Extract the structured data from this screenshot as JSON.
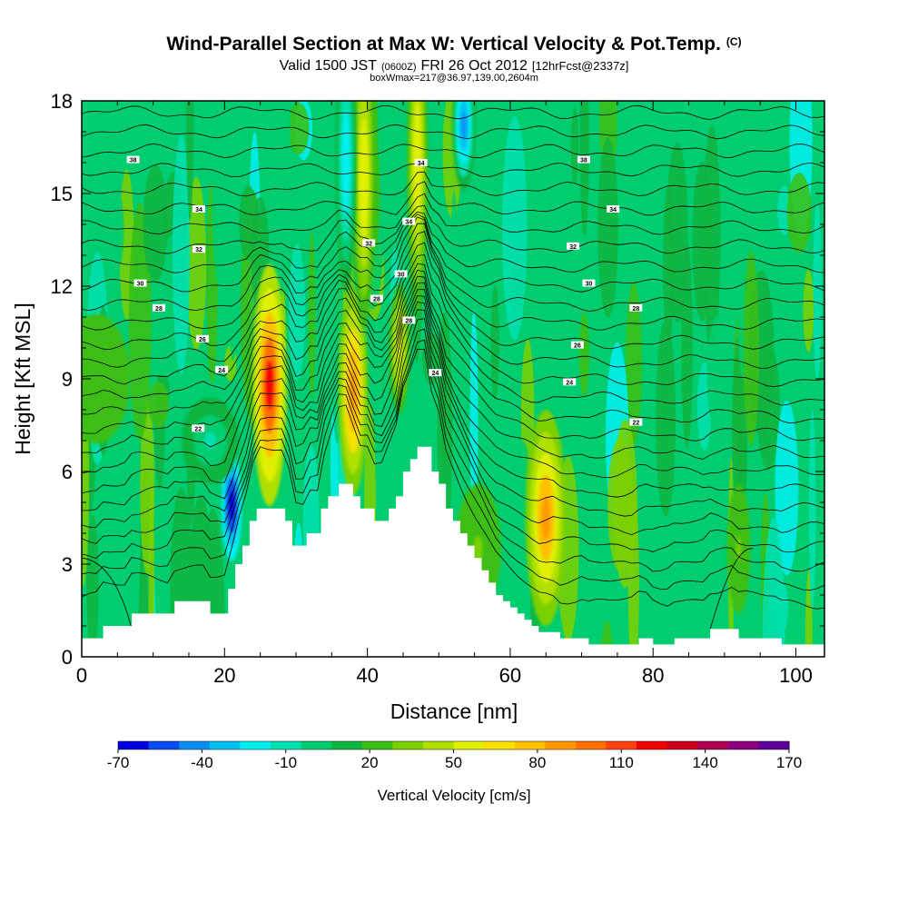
{
  "header": {
    "title": "Wind-Parallel Section at Max W: Vertical Velocity & Pot.Temp.",
    "title_mark": "(C)",
    "sub_valid": "Valid 1500 JST",
    "sub_zulu": "(0600Z)",
    "sub_date": "FRI 26 Oct 2012",
    "sub_fcst": "[12hrFcst@2337z]",
    "sub_box": "boxWmax=217@36.97,139.00,2604m"
  },
  "chart_data": {
    "type": "heatmap",
    "xlabel": "Distance [nm]",
    "ylabel": "Height [Kft MSL]",
    "xlim": [
      0,
      104
    ],
    "ylim": [
      0,
      18
    ],
    "x_ticks": [
      "0",
      "20",
      "40",
      "60",
      "80",
      "100"
    ],
    "y_ticks": [
      "0",
      "3",
      "6",
      "9",
      "12",
      "15",
      "18"
    ],
    "colorbar": {
      "label": "Vertical Velocity [cm/s]",
      "tick_labels": [
        "-70",
        "-40",
        "-10",
        "20",
        "50",
        "80",
        "110",
        "140",
        "170"
      ],
      "range": [
        -70,
        170
      ],
      "colors": [
        "#0000e0",
        "#0a4cf0",
        "#0a8cf0",
        "#00c0f0",
        "#00f0f0",
        "#00e0b0",
        "#00cc70",
        "#10b440",
        "#3cbe14",
        "#7cd000",
        "#b0e000",
        "#e0f000",
        "#f8e000",
        "#ffc000",
        "#ff9800",
        "#ff7000",
        "#ff4010",
        "#f00000",
        "#d00020",
        "#b00050",
        "#8c0080",
        "#60009c"
      ]
    },
    "terrain_kft": [
      [
        0,
        0.6
      ],
      [
        3,
        0.6
      ],
      [
        3,
        1
      ],
      [
        7,
        1
      ],
      [
        7,
        1.4
      ],
      [
        13,
        1.4
      ],
      [
        13,
        1.8
      ],
      [
        18,
        1.8
      ],
      [
        18,
        1.4
      ],
      [
        20.5,
        1.4
      ],
      [
        20.5,
        2.2
      ],
      [
        21.5,
        2.2
      ],
      [
        21.5,
        3
      ],
      [
        22.5,
        3
      ],
      [
        22.5,
        3.6
      ],
      [
        23.5,
        3.6
      ],
      [
        23.5,
        4.4
      ],
      [
        24.5,
        4.4
      ],
      [
        24.5,
        4.8
      ],
      [
        28.5,
        4.8
      ],
      [
        28.5,
        4.4
      ],
      [
        29.5,
        4.4
      ],
      [
        29.5,
        3.6
      ],
      [
        31.5,
        3.6
      ],
      [
        31.5,
        4
      ],
      [
        33.5,
        4
      ],
      [
        33.5,
        4.8
      ],
      [
        34.5,
        4.8
      ],
      [
        34.5,
        5.2
      ],
      [
        36,
        5.2
      ],
      [
        36,
        5.6
      ],
      [
        38,
        5.6
      ],
      [
        38,
        5.2
      ],
      [
        39,
        5.2
      ],
      [
        39,
        4.8
      ],
      [
        41,
        4.8
      ],
      [
        41,
        4.4
      ],
      [
        43,
        4.4
      ],
      [
        43,
        4.8
      ],
      [
        44,
        4.8
      ],
      [
        44,
        5.2
      ],
      [
        45,
        5.2
      ],
      [
        45,
        6
      ],
      [
        46,
        6
      ],
      [
        46,
        6.4
      ],
      [
        47,
        6.4
      ],
      [
        47,
        6.8
      ],
      [
        49,
        6.8
      ],
      [
        49,
        6
      ],
      [
        50,
        6
      ],
      [
        50,
        5.6
      ],
      [
        51,
        5.6
      ],
      [
        51,
        4.8
      ],
      [
        52,
        4.8
      ],
      [
        52,
        4.4
      ],
      [
        53,
        4.4
      ],
      [
        53,
        4
      ],
      [
        54,
        4
      ],
      [
        54,
        3.6
      ],
      [
        55,
        3.6
      ],
      [
        55,
        3.2
      ],
      [
        56,
        3.2
      ],
      [
        56,
        2.8
      ],
      [
        57,
        2.8
      ],
      [
        57,
        2.4
      ],
      [
        58,
        2.4
      ],
      [
        58,
        2
      ],
      [
        59,
        2
      ],
      [
        59,
        1.8
      ],
      [
        60,
        1.8
      ],
      [
        60,
        1.6
      ],
      [
        61,
        1.6
      ],
      [
        61,
        1.4
      ],
      [
        62,
        1.4
      ],
      [
        62,
        1.2
      ],
      [
        63,
        1.2
      ],
      [
        63,
        1
      ],
      [
        64,
        1
      ],
      [
        64,
        0.8
      ],
      [
        67,
        0.8
      ],
      [
        67,
        0.6
      ],
      [
        71,
        0.6
      ],
      [
        71,
        0.4
      ],
      [
        78,
        0.4
      ],
      [
        78,
        0.6
      ],
      [
        80,
        0.6
      ],
      [
        80,
        0.4
      ],
      [
        83,
        0.4
      ],
      [
        83,
        0.6
      ],
      [
        88,
        0.6
      ],
      [
        88,
        0.9
      ],
      [
        92,
        0.9
      ],
      [
        92,
        0.6
      ],
      [
        98,
        0.6
      ],
      [
        98,
        0.4
      ],
      [
        104,
        0.4
      ]
    ],
    "bands": [
      {
        "x": 21.0,
        "y": 4.9,
        "w": 1.1,
        "h": 1.6,
        "v": -70
      },
      {
        "x": 26.5,
        "y": 8.5,
        "w": 1.0,
        "h": 2.4,
        "v": 165
      },
      {
        "x": 26.3,
        "y": 8.8,
        "w": 1.5,
        "h": 2.8,
        "v": 120
      },
      {
        "x": 38.0,
        "y": 9.0,
        "w": 0.9,
        "h": 1.5,
        "v": 120
      },
      {
        "x": 38.0,
        "y": 8.6,
        "w": 1.3,
        "h": 2.4,
        "v": 90
      },
      {
        "x": 39.5,
        "y": 15.5,
        "w": 1.0,
        "h": 3.5,
        "v": 60
      },
      {
        "x": 37.0,
        "y": 16.0,
        "w": 0.9,
        "h": 3.0,
        "v": -25
      },
      {
        "x": 47.0,
        "y": 16.0,
        "w": 0.9,
        "h": 3.5,
        "v": 60
      },
      {
        "x": 44.5,
        "y": 10.0,
        "w": 0.9,
        "h": 1.5,
        "v": 55
      },
      {
        "x": 53.5,
        "y": 17.2,
        "w": 1.0,
        "h": 1.5,
        "v": -45
      },
      {
        "x": 65.0,
        "y": 4.5,
        "w": 1.8,
        "h": 2.5,
        "v": 85
      },
      {
        "x": 55.5,
        "y": 3.5,
        "w": 2.0,
        "h": 1.5,
        "v": 30
      },
      {
        "x": 92.0,
        "y": 3.5,
        "w": 1.0,
        "h": 1.5,
        "v": 30
      },
      {
        "x": 2.0,
        "y": 9.0,
        "w": 3.0,
        "h": 1.5,
        "v": 25
      },
      {
        "x": 18.0,
        "y": 7.0,
        "w": 2.5,
        "h": 1.0,
        "v": -10
      }
    ],
    "isentrope_labels": [
      {
        "text": "38",
        "x": 7.2,
        "y": 16.1
      },
      {
        "text": "34",
        "x": 47.5,
        "y": 16.0
      },
      {
        "text": "38",
        "x": 70.3,
        "y": 16.1
      },
      {
        "text": "34",
        "x": 16.4,
        "y": 14.5
      },
      {
        "text": "34",
        "x": 45.8,
        "y": 14.1
      },
      {
        "text": "34",
        "x": 74.4,
        "y": 14.5
      },
      {
        "text": "32",
        "x": 16.4,
        "y": 13.2
      },
      {
        "text": "32",
        "x": 40.2,
        "y": 13.4
      },
      {
        "text": "32",
        "x": 68.8,
        "y": 13.3
      },
      {
        "text": "30",
        "x": 8.2,
        "y": 12.1
      },
      {
        "text": "30",
        "x": 44.7,
        "y": 12.4
      },
      {
        "text": "30",
        "x": 71.0,
        "y": 12.1
      },
      {
        "text": "28",
        "x": 10.8,
        "y": 11.3
      },
      {
        "text": "28",
        "x": 41.3,
        "y": 11.6
      },
      {
        "text": "28",
        "x": 45.8,
        "y": 10.9
      },
      {
        "text": "28",
        "x": 77.6,
        "y": 11.3
      },
      {
        "text": "26",
        "x": 16.9,
        "y": 10.3
      },
      {
        "text": "26",
        "x": 69.4,
        "y": 10.1
      },
      {
        "text": "24",
        "x": 19.6,
        "y": 9.3
      },
      {
        "text": "24",
        "x": 49.5,
        "y": 9.2
      },
      {
        "text": "24",
        "x": 68.3,
        "y": 8.9
      },
      {
        "text": "22",
        "x": 16.3,
        "y": 7.4
      },
      {
        "text": "22",
        "x": 77.6,
        "y": 7.6
      }
    ]
  }
}
